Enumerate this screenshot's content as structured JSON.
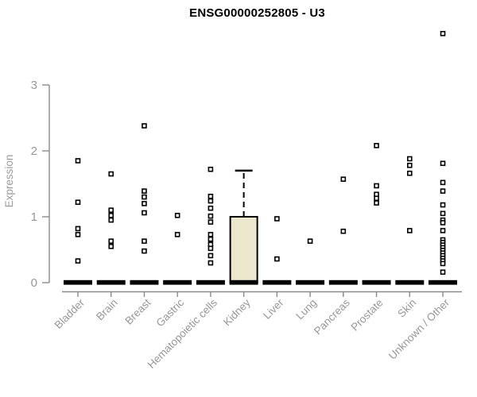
{
  "page": {
    "background": "#ffffff"
  },
  "chart_data": {
    "type": "boxplot",
    "title": "ENSG00000252805 - U3",
    "xlabel": "",
    "ylabel": "Expression",
    "yticks": [
      0,
      1,
      2,
      3
    ],
    "ylim": [
      0,
      3.95
    ],
    "grid": false,
    "legend": null,
    "colors": {
      "axis": "#8b8b8b",
      "tick_label": "#979797",
      "axis_label": "#9b9b9b",
      "box_fill": "#ece8cd",
      "box_stroke": "#000000",
      "point": "#000000",
      "zero_bar": "#000000"
    },
    "categories": [
      "Bladder",
      "Brain",
      "Breast",
      "Gastric",
      "Hematopoietic cells",
      "Kidney",
      "Liver",
      "Lung",
      "Pancreas",
      "Prostate",
      "Skin",
      "Unknown / Other"
    ],
    "series": [
      {
        "name": "Bladder",
        "box": {
          "q1": 0,
          "median": 0,
          "q3": 0
        },
        "outliers": [
          1.85,
          1.22,
          0.82,
          0.73,
          0.33
        ]
      },
      {
        "name": "Brain",
        "box": {
          "q1": 0,
          "median": 0,
          "q3": 0
        },
        "outliers": [
          1.65,
          1.1,
          1.02,
          0.95,
          0.63,
          0.55
        ]
      },
      {
        "name": "Breast",
        "box": {
          "q1": 0,
          "median": 0,
          "q3": 0
        },
        "outliers": [
          2.38,
          1.39,
          1.3,
          1.2,
          1.06,
          0.63,
          0.48
        ]
      },
      {
        "name": "Gastric",
        "box": {
          "q1": 0,
          "median": 0,
          "q3": 0
        },
        "outliers": [
          1.02,
          0.73
        ]
      },
      {
        "name": "Hematopoietic cells",
        "box": {
          "q1": 0,
          "median": 0,
          "q3": 0
        },
        "outliers": [
          1.72,
          1.31,
          1.24,
          1.13,
          1.01,
          0.92,
          0.73,
          0.66,
          0.58,
          0.52,
          0.41,
          0.3
        ]
      },
      {
        "name": "Kidney",
        "box": {
          "q1": 0,
          "median": 0,
          "q3": 1.0,
          "whisker_high": 1.7
        },
        "outliers": []
      },
      {
        "name": "Liver",
        "box": {
          "q1": 0,
          "median": 0,
          "q3": 0
        },
        "outliers": [
          0.97,
          0.36
        ]
      },
      {
        "name": "Lung",
        "box": {
          "q1": 0,
          "median": 0,
          "q3": 0
        },
        "outliers": [
          0.63
        ]
      },
      {
        "name": "Pancreas",
        "box": {
          "q1": 0,
          "median": 0,
          "q3": 0
        },
        "outliers": [
          1.57,
          0.78
        ]
      },
      {
        "name": "Prostate",
        "box": {
          "q1": 0,
          "median": 0,
          "q3": 0
        },
        "outliers": [
          2.08,
          1.47,
          1.34,
          1.28,
          1.21
        ]
      },
      {
        "name": "Skin",
        "box": {
          "q1": 0,
          "median": 0,
          "q3": 0
        },
        "outliers": [
          1.88,
          1.78,
          1.66,
          0.79
        ]
      },
      {
        "name": "Unknown / Other",
        "box": {
          "q1": 0,
          "median": 0,
          "q3": 0
        },
        "outliers": [
          3.78,
          1.81,
          1.52,
          1.39,
          1.18,
          1.05,
          0.95,
          0.91,
          0.79,
          0.65,
          0.61,
          0.57,
          0.53,
          0.49,
          0.45,
          0.41,
          0.37,
          0.33,
          0.29,
          0.16
        ]
      }
    ]
  }
}
